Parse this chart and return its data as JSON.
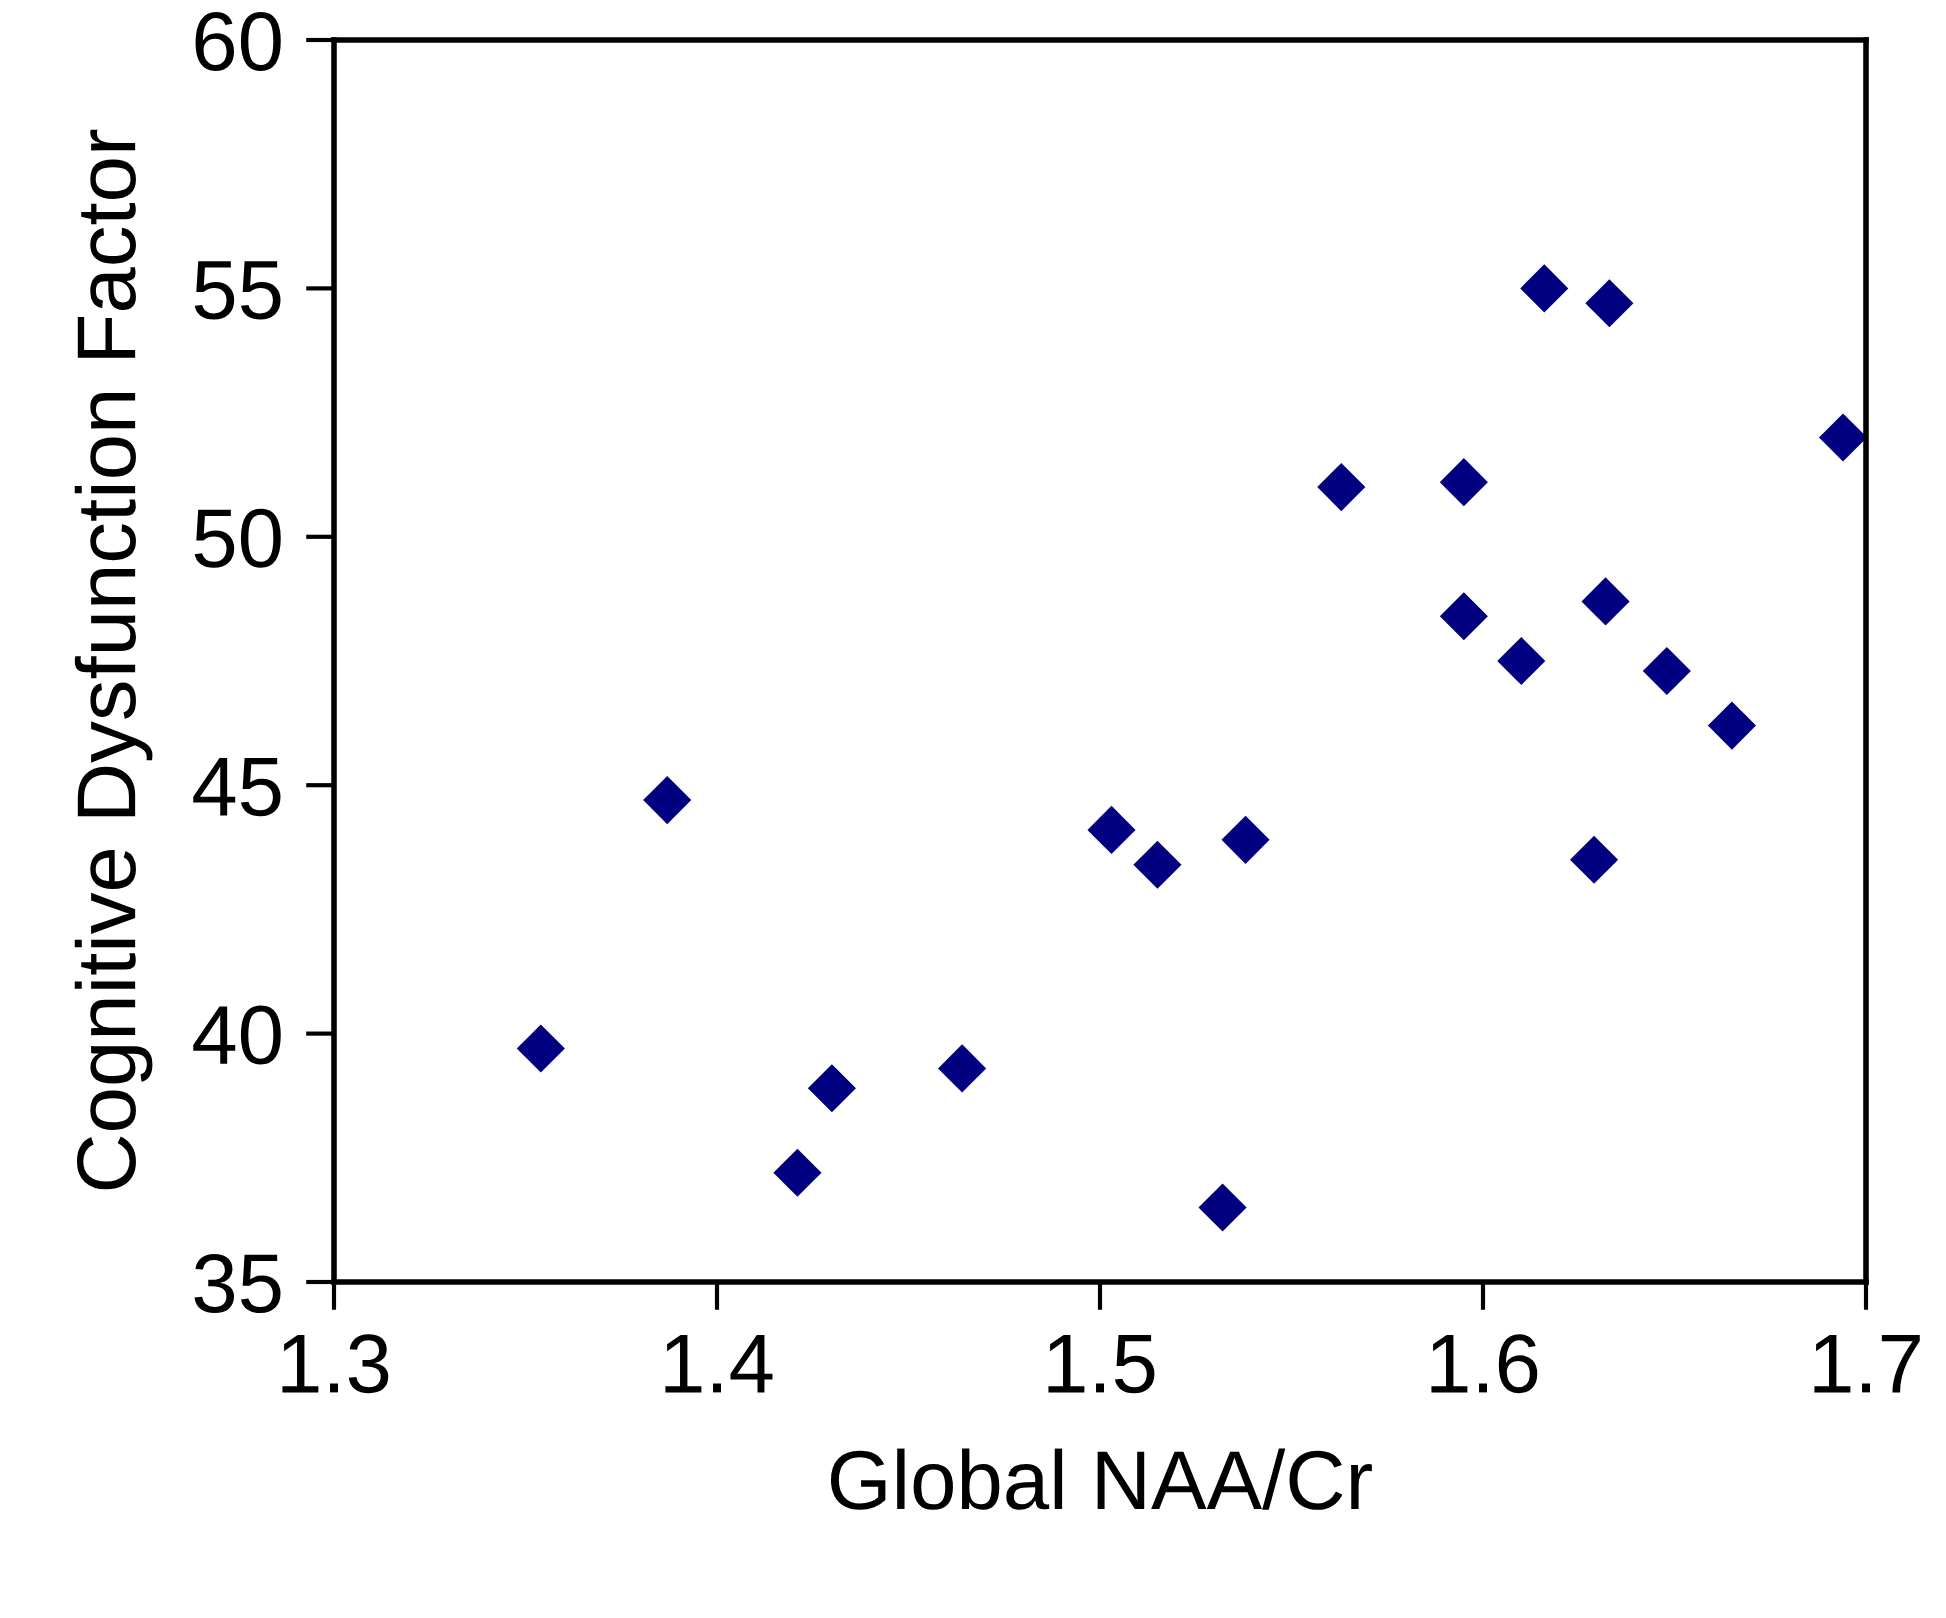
{
  "chart_data": {
    "type": "scatter",
    "xlabel": "Global NAA/Cr",
    "ylabel": "Cognitive Dysfunction Factor",
    "x": [
      1.354,
      1.387,
      1.421,
      1.43,
      1.464,
      1.503,
      1.515,
      1.538,
      1.532,
      1.616,
      1.633,
      1.694,
      1.563,
      1.595,
      1.595,
      1.632,
      1.61,
      1.648,
      1.665,
      1.629
    ],
    "series": [
      {
        "color": "#000080",
        "values": [
          39.7,
          44.7,
          37.2,
          38.9,
          39.3,
          44.1,
          43.4,
          43.9,
          36.5,
          55.0,
          54.7,
          52.0,
          51.0,
          51.1,
          48.4,
          48.7,
          47.5,
          47.3,
          46.2,
          43.5
        ]
      }
    ],
    "marker": "diamond",
    "grid": false,
    "xlim": [
      1.3,
      1.7
    ],
    "xticks": [
      1.3,
      1.4,
      1.5,
      1.6,
      1.7
    ],
    "ylim": [
      35,
      60
    ],
    "yticks": [
      35,
      40,
      45,
      50,
      55,
      60
    ]
  }
}
